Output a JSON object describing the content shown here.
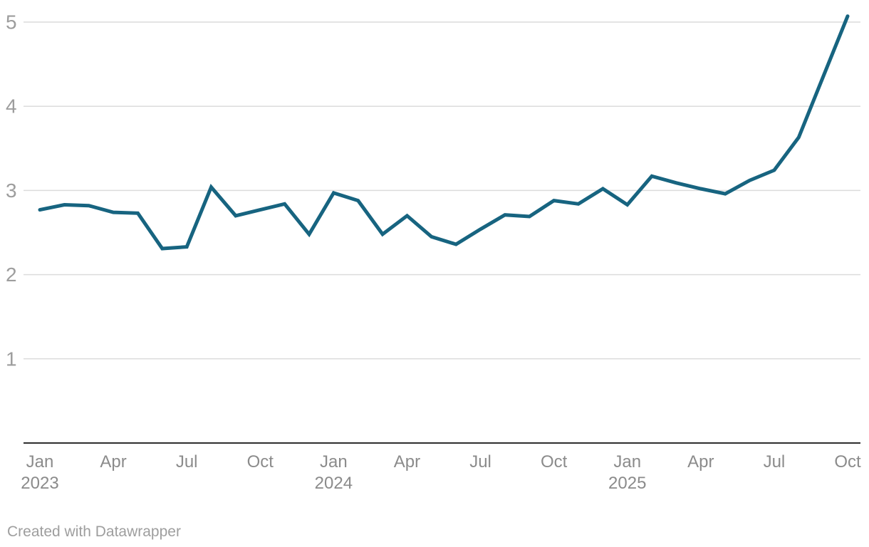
{
  "chart_data": {
    "type": "line",
    "title": "",
    "xlabel": "",
    "ylabel": "",
    "x": [
      "Jan 2023",
      "Feb 2023",
      "Mar 2023",
      "Apr 2023",
      "May 2023",
      "Jun 2023",
      "Jul 2023",
      "Aug 2023",
      "Sep 2023",
      "Oct 2023",
      "Nov 2023",
      "Dec 2023",
      "Jan 2024",
      "Feb 2024",
      "Mar 2024",
      "Apr 2024",
      "May 2024",
      "Jun 2024",
      "Jul 2024",
      "Aug 2024",
      "Sep 2024",
      "Oct 2024",
      "Nov 2024",
      "Dec 2024",
      "Jan 2025",
      "Feb 2025",
      "Mar 2025",
      "Apr 2025",
      "May 2025",
      "Jun 2025",
      "Jul 2025",
      "Aug 2025",
      "Sep 2025",
      "Oct 2025"
    ],
    "values": [
      2.77,
      2.83,
      2.82,
      2.74,
      2.73,
      2.31,
      2.33,
      3.04,
      2.7,
      2.77,
      2.84,
      2.48,
      2.97,
      2.88,
      2.48,
      2.7,
      2.45,
      2.36,
      2.54,
      2.71,
      2.69,
      2.88,
      2.84,
      3.02,
      2.83,
      3.17,
      3.09,
      3.02,
      2.96,
      3.12,
      3.24,
      3.63,
      4.35,
      5.07
    ],
    "ylim": [
      0,
      5.2
    ],
    "y_ticks": [
      1,
      2,
      3,
      4,
      5
    ],
    "x_ticks": [
      {
        "index": 0,
        "label": "Jan",
        "year": "2023"
      },
      {
        "index": 3,
        "label": "Apr"
      },
      {
        "index": 6,
        "label": "Jul"
      },
      {
        "index": 9,
        "label": "Oct"
      },
      {
        "index": 12,
        "label": "Jan",
        "year": "2024"
      },
      {
        "index": 15,
        "label": "Apr"
      },
      {
        "index": 18,
        "label": "Jul"
      },
      {
        "index": 21,
        "label": "Oct"
      },
      {
        "index": 24,
        "label": "Jan",
        "year": "2025"
      },
      {
        "index": 27,
        "label": "Apr"
      },
      {
        "index": 30,
        "label": "Jul"
      },
      {
        "index": 33,
        "label": "Oct"
      }
    ],
    "grid": true,
    "legend": "none",
    "line_color": "#176480",
    "gridline_color": "#dcdcdc",
    "axis_line_color": "#2e2e2e",
    "x_tick_label_color": "#8b8b8b",
    "y_tick_label_color": "#9d9d9d"
  },
  "footer": {
    "credit": "Created with Datawrapper"
  }
}
